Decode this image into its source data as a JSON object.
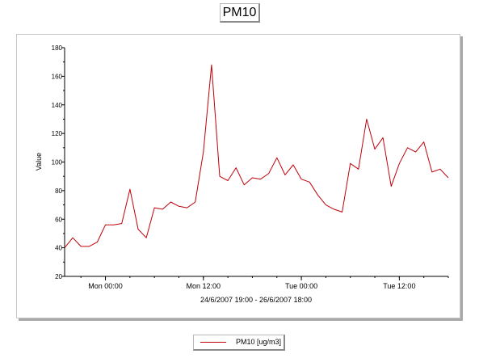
{
  "chart_data": {
    "type": "line",
    "title": "PM10",
    "ylabel": "Value",
    "xlabel": "24/6/2007 19:00 - 26/6/2007 18:00",
    "ylim": [
      20,
      180
    ],
    "yticks": [
      20,
      40,
      60,
      80,
      100,
      120,
      140,
      160,
      180
    ],
    "xlim": [
      0,
      47
    ],
    "xticks": [
      {
        "x": 5,
        "label": "Mon 00:00"
      },
      {
        "x": 17,
        "label": "Mon 12:00"
      },
      {
        "x": 29,
        "label": "Tue 00:00"
      },
      {
        "x": 41,
        "label": "Tue 12:00"
      }
    ],
    "legend_position": "bottom",
    "series": [
      {
        "name": "PM10 [ug/m3]",
        "color": "#c0000a",
        "values": [
          40,
          47,
          41,
          41,
          44,
          56,
          56,
          57,
          81,
          53,
          47,
          68,
          67,
          72,
          69,
          68,
          72,
          107,
          168,
          90,
          87,
          96,
          84,
          89,
          88,
          92,
          103,
          91,
          98,
          88,
          86,
          77,
          70,
          67,
          65,
          99,
          95,
          130,
          109,
          117,
          83,
          99,
          110,
          107,
          114,
          93,
          95,
          89
        ]
      }
    ]
  }
}
